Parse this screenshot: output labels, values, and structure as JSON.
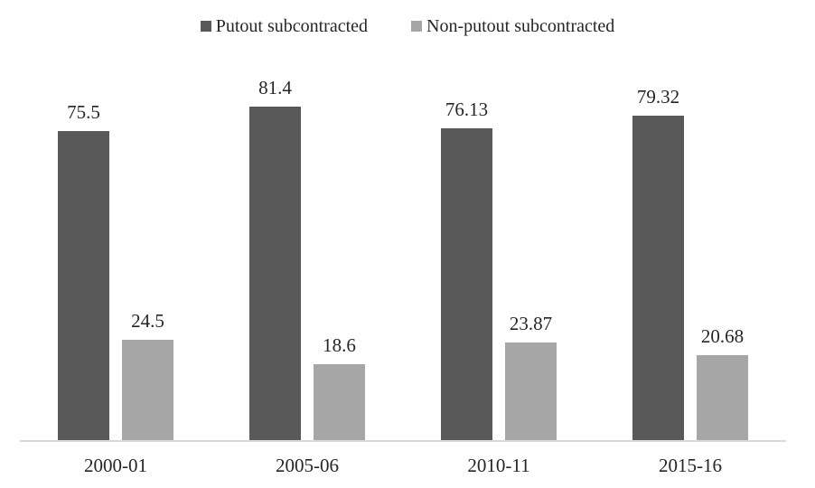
{
  "chart_data": {
    "type": "bar",
    "title": "",
    "xlabel": "",
    "ylabel": "",
    "categories": [
      "2000-01",
      "2005-06",
      "2010-11",
      "2015-16"
    ],
    "series": [
      {
        "name": "Putout subcontracted",
        "color": "#595959",
        "values": [
          75.5,
          81.4,
          76.13,
          79.32
        ]
      },
      {
        "name": "Non-putout subcontracted",
        "color": "#a6a6a6",
        "values": [
          24.5,
          18.6,
          23.87,
          20.68
        ]
      }
    ],
    "value_labels_shown": true,
    "ylim": [
      0,
      90
    ],
    "grid": false,
    "y_axis_shown": false,
    "legend_position": "top",
    "axis_line_color": "#d9d9d9",
    "text_color": "#262626",
    "background": "#ffffff"
  }
}
